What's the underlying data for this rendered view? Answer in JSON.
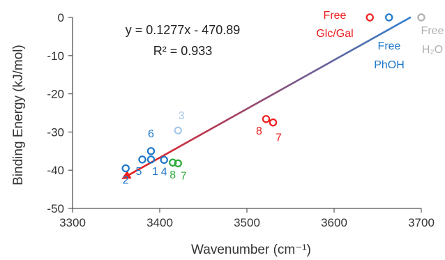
{
  "chart_data": {
    "type": "scatter",
    "xlabel": "Wavenumber (cm⁻¹)",
    "ylabel": "Binding Energy (kJ/mol)",
    "xlim": [
      3300,
      3700
    ],
    "ylim": [
      -50,
      0
    ],
    "x_ticks": [
      "3300",
      "3400",
      "3500",
      "3600",
      "3700"
    ],
    "y_ticks": [
      "0",
      "-10",
      "-20",
      "-30",
      "-40",
      "-50"
    ],
    "x_tick_values": [
      3300,
      3400,
      3500,
      3600,
      3700
    ],
    "y_tick_values": [
      0,
      -10,
      -20,
      -30,
      -40,
      -50
    ],
    "grid": false,
    "equation": "y = 0.1277x - 470.89",
    "r_squared": "R² = 0.933",
    "fit": {
      "slope": 0.1277,
      "intercept": -470.89,
      "x_start": 3688,
      "x_end": 3358
    },
    "points": [
      {
        "label": "2",
        "x": 3361,
        "y": -39.5,
        "color": "#1f77c9"
      },
      {
        "label": "5",
        "x": 3380,
        "y": -37.2,
        "color": "#1f77c9"
      },
      {
        "label": "1",
        "x": 3390,
        "y": -37.2,
        "color": "#1f77c9"
      },
      {
        "label": "6",
        "x": 3390,
        "y": -35.0,
        "color": "#1f77c9"
      },
      {
        "label": "4",
        "x": 3405,
        "y": -37.3,
        "color": "#1f77c9"
      },
      {
        "label": "3",
        "x": 3421,
        "y": -29.6,
        "color": "#a9c8e6"
      },
      {
        "label": "8",
        "x": 3415,
        "y": -38.0,
        "color": "#2eaa3c"
      },
      {
        "label": "7",
        "x": 3421,
        "y": -38.2,
        "color": "#2eaa3c"
      },
      {
        "label": "8",
        "x": 3522,
        "y": -26.6,
        "color": "#ee1c1c"
      },
      {
        "label": "7",
        "x": 3530,
        "y": -27.5,
        "color": "#ee1c1c"
      },
      {
        "label": "",
        "x": 3641,
        "y": 0,
        "color": "#ee1c1c"
      },
      {
        "label": "",
        "x": 3663,
        "y": 0,
        "color": "#1f77c9"
      },
      {
        "label": "",
        "x": 3700,
        "y": 0,
        "color": "#b0b0b0"
      }
    ],
    "annotations": [
      {
        "lines": [
          "Free",
          "Glc/Gal"
        ],
        "color": "#ee1c1c"
      },
      {
        "lines": [
          "Free",
          "PhOH"
        ],
        "color": "#1f77c9"
      },
      {
        "lines": [
          "Free",
          "H₂O"
        ],
        "color": "#b0b0b0"
      }
    ],
    "line_colors": {
      "start": "#2f7fd0",
      "end": "#ee1c1c"
    }
  }
}
